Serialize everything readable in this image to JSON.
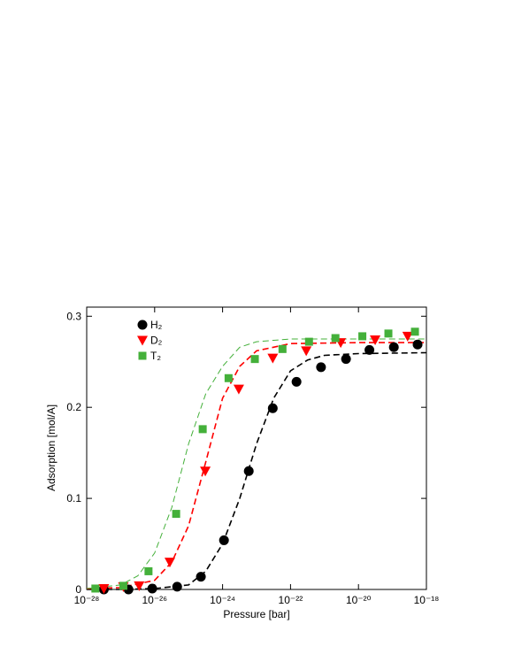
{
  "chart_data": {
    "type": "scatter",
    "x_label": "Pressure [bar]",
    "y_label": "Adsorption [mol/A]",
    "x_log": true,
    "legend": "upper left",
    "xlim": [
      1e-28,
      1e-18
    ],
    "xticks": [
      {
        "value": 1e-28,
        "label": "10⁻²⁸"
      },
      {
        "value": 1e-26,
        "label": "10⁻²⁶"
      },
      {
        "value": 1e-24,
        "label": "10⁻²⁴"
      },
      {
        "value": 1e-22,
        "label": "10⁻²²"
      },
      {
        "value": 1e-20,
        "label": "10⁻²⁰"
      },
      {
        "value": 1e-18,
        "label": "10⁻¹⁸"
      }
    ],
    "ylim": [
      0,
      0.31
    ],
    "yticks": [
      0,
      0.1,
      0.2,
      0.3
    ],
    "series": [
      {
        "name": "H₂",
        "color": "#000000",
        "marker": "circle",
        "x": [
          3.2e-28,
          1.7e-27,
          8.5e-27,
          4.6e-26,
          2.3e-25,
          1.1e-24,
          5.9e-24,
          3e-23,
          1.5e-22,
          7.9e-22,
          4.3e-21,
          2.1e-20,
          1.1e-19,
          5.5e-19
        ],
        "values": [
          0,
          0,
          0.001,
          0.003,
          0.014,
          0.054,
          0.13,
          0.199,
          0.228,
          0.244,
          0.253,
          0.263,
          0.266,
          0.269
        ]
      },
      {
        "name": "D₂",
        "color": "#ff0000",
        "marker": "triangle-down",
        "x": [
          3.2e-28,
          1.2e-27,
          3.5e-27,
          2.8e-26,
          3.1e-25,
          3e-24,
          3e-23,
          2.9e-22,
          3e-21,
          3.1e-20,
          2.8e-19
        ],
        "values": [
          0.001,
          0.003,
          0.004,
          0.03,
          0.13,
          0.22,
          0.254,
          0.262,
          0.271,
          0.274,
          0.278
        ]
      },
      {
        "name": "T₂",
        "color": "#44b03a",
        "marker": "square",
        "x": [
          1.8e-28,
          1.2e-27,
          6.6e-27,
          4.3e-26,
          2.6e-25,
          1.5e-24,
          8.9e-24,
          5.8e-23,
          3.5e-22,
          2.1e-21,
          1.3e-20,
          7.6e-20,
          4.6e-19
        ],
        "values": [
          0.001,
          0.004,
          0.02,
          0.083,
          0.176,
          0.232,
          0.253,
          0.264,
          0.272,
          0.276,
          0.278,
          0.281,
          0.283
        ]
      }
    ],
    "fits": [
      {
        "color": "#000000",
        "width": 1.6,
        "x": [
          1e-28,
          1e-27,
          1e-26,
          1e-25,
          3.2e-25,
          1e-24,
          3.2e-24,
          1e-23,
          3.2e-23,
          1e-22,
          3.2e-22,
          1e-21,
          1e-20,
          1e-18
        ],
        "values": [
          0,
          0,
          0.001,
          0.005,
          0.02,
          0.05,
          0.1,
          0.16,
          0.21,
          0.24,
          0.252,
          0.257,
          0.259,
          0.26
        ]
      },
      {
        "color": "#ff0000",
        "width": 1.6,
        "x": [
          1e-28,
          1e-27,
          1e-26,
          3.2e-26,
          1e-25,
          3.2e-25,
          1e-24,
          3.2e-24,
          1e-23,
          1e-22,
          1e-20,
          1e-18
        ],
        "values": [
          0.001,
          0.002,
          0.01,
          0.03,
          0.07,
          0.14,
          0.21,
          0.245,
          0.262,
          0.27,
          0.271,
          0.271
        ]
      },
      {
        "color": "#44b03a",
        "width": 1,
        "x": [
          1e-28,
          1e-27,
          3.2e-27,
          1e-26,
          3.2e-26,
          1e-25,
          3.2e-25,
          1e-24,
          3.2e-24,
          1e-23,
          1e-22,
          1e-18
        ],
        "values": [
          0.001,
          0.005,
          0.015,
          0.04,
          0.09,
          0.16,
          0.215,
          0.245,
          0.266,
          0.272,
          0.275,
          0.275
        ]
      }
    ]
  }
}
